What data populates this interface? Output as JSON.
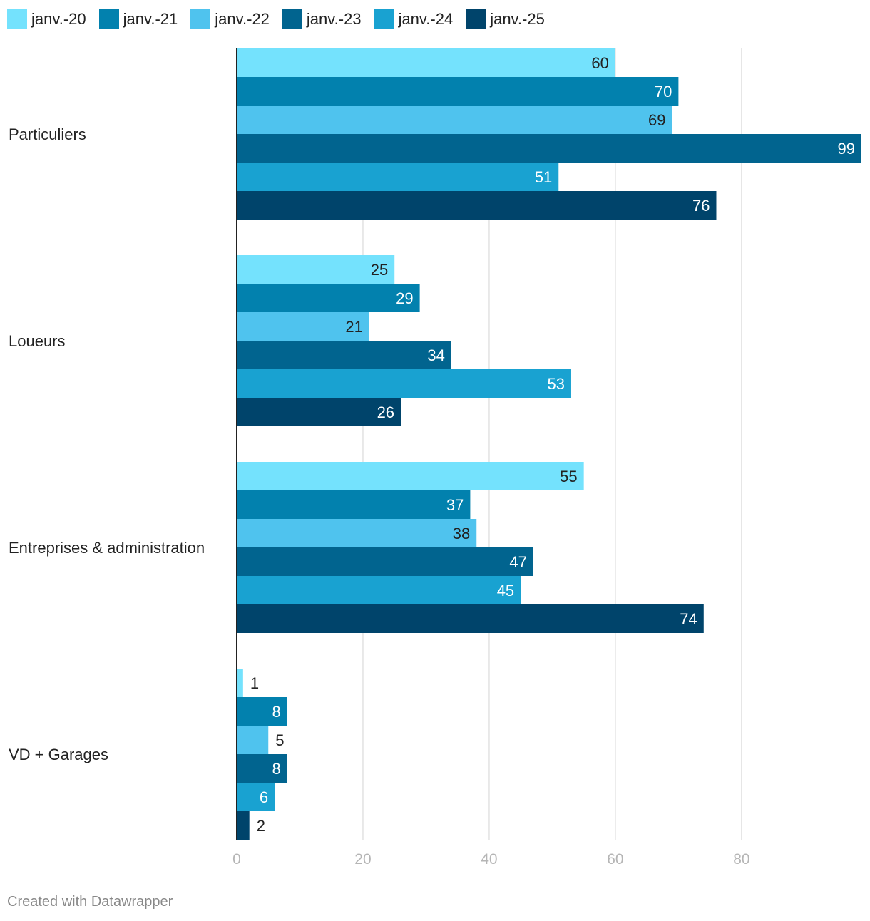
{
  "chart_data": {
    "type": "bar",
    "orientation": "horizontal",
    "categories": [
      "Particuliers",
      "Loueurs",
      "Entreprises & administration",
      "VD + Garages"
    ],
    "series": [
      {
        "name": "janv.-20",
        "color": "#74e2fd",
        "values": [
          60,
          25,
          55,
          1
        ]
      },
      {
        "name": "janv.-21",
        "color": "#0281ae",
        "values": [
          70,
          29,
          37,
          8
        ]
      },
      {
        "name": "janv.-22",
        "color": "#4fc3ee",
        "values": [
          69,
          21,
          38,
          5
        ]
      },
      {
        "name": "janv.-23",
        "color": "#01648f",
        "values": [
          99,
          34,
          47,
          8
        ]
      },
      {
        "name": "janv.-24",
        "color": "#19a2d1",
        "values": [
          51,
          53,
          45,
          6
        ]
      },
      {
        "name": "janv.-25",
        "color": "#00446b",
        "values": [
          76,
          26,
          74,
          2
        ]
      }
    ],
    "xlim": [
      0,
      99
    ],
    "xticks": [
      0,
      20,
      40,
      60,
      80
    ],
    "grid": true,
    "legend": "top-left"
  },
  "footer": {
    "credit": "Created with Datawrapper"
  }
}
